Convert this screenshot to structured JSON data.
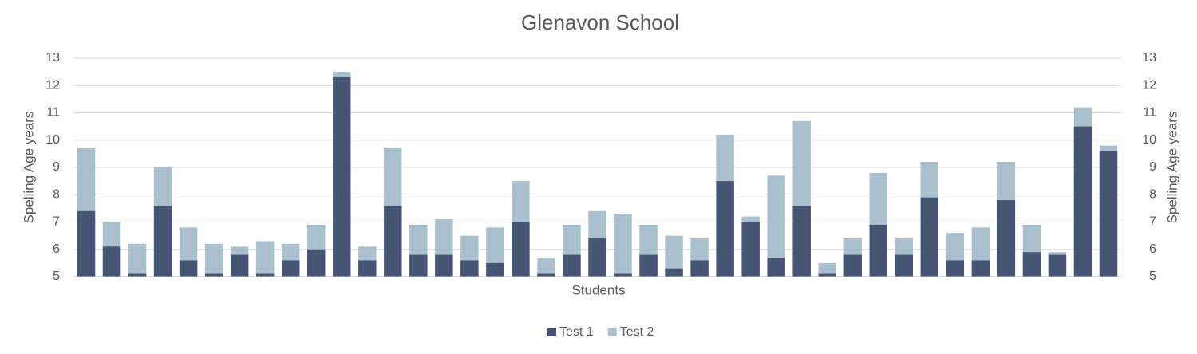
{
  "chart_data": {
    "type": "bar",
    "title": "Glenavon School",
    "x_label": "Students",
    "y_label": "Spelling Age years",
    "y2_label": "Spelling Age years",
    "categories": [
      null,
      null,
      null,
      null,
      null,
      null,
      null,
      null,
      null,
      null,
      null,
      null,
      null,
      null,
      null,
      null,
      null,
      null,
      null,
      null,
      null,
      null,
      null,
      null,
      null,
      null,
      null,
      null,
      null,
      null,
      null,
      null,
      null,
      null,
      null,
      null,
      null,
      null,
      null,
      null,
      null
    ],
    "series": [
      {
        "name": "Test 2",
        "color": "#a9c1cf",
        "axis": "y2",
        "values": [
          9.7,
          7.0,
          6.2,
          9.0,
          6.8,
          6.2,
          6.1,
          6.3,
          6.2,
          6.9,
          12.5,
          6.1,
          9.7,
          6.9,
          7.1,
          6.5,
          6.8,
          8.5,
          5.7,
          6.9,
          7.4,
          7.3,
          6.9,
          6.5,
          6.4,
          10.2,
          7.2,
          8.7,
          10.7,
          5.5,
          6.4,
          8.8,
          6.4,
          9.2,
          6.6,
          6.8,
          9.2,
          6.9,
          5.9,
          11.2,
          9.8
        ]
      },
      {
        "name": "Test 1",
        "color": "#455574",
        "values": [
          7.4,
          6.1,
          5.1,
          7.6,
          5.6,
          5.1,
          5.8,
          5.1,
          5.6,
          6.0,
          12.3,
          5.6,
          7.6,
          5.8,
          5.8,
          5.6,
          5.5,
          7.0,
          5.1,
          5.8,
          6.4,
          5.1,
          5.8,
          5.3,
          5.6,
          8.5,
          7.0,
          5.7,
          7.6,
          5.1,
          5.8,
          6.9,
          5.8,
          7.9,
          5.6,
          5.6,
          7.8,
          5.9,
          5.8,
          10.5,
          9.6
        ]
      }
    ],
    "ylim": [
      5,
      13
    ],
    "yticks": [
      5,
      6,
      7,
      8,
      9,
      10,
      11,
      12,
      13
    ],
    "y2lim": [
      5,
      13
    ],
    "y2ticks": [
      5,
      6,
      7,
      8,
      9,
      10,
      11,
      12,
      13
    ],
    "grid": true,
    "legend": "bottom"
  }
}
